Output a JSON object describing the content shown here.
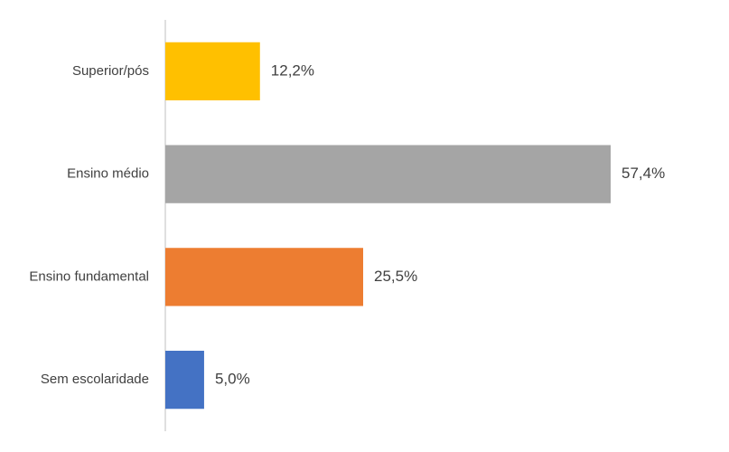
{
  "chart_data": {
    "type": "bar",
    "orientation": "horizontal",
    "categories": [
      "Superior/pós",
      "Ensino médio",
      "Ensino fundamental",
      "Sem escolaridade"
    ],
    "values": [
      12.2,
      57.4,
      25.5,
      5.0
    ],
    "value_labels": [
      "12,2%",
      "57,4%",
      "25,5%",
      "5,0%"
    ],
    "colors": [
      "#ffc000",
      "#a5a5a5",
      "#ed7d31",
      "#4472c4"
    ]
  }
}
